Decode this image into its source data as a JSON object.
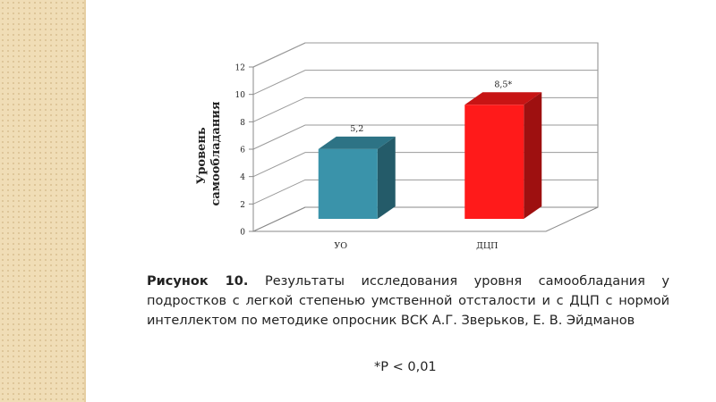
{
  "chart_data": {
    "type": "bar",
    "title": "",
    "xlabel": "",
    "ylabel": "Уровень самообладания",
    "ylabel_lines": [
      "Уровень",
      "самообладания"
    ],
    "categories": [
      "УО",
      "ДЦП"
    ],
    "values": [
      5.2,
      8.5
    ],
    "data_labels": [
      "5,2",
      "8,5*"
    ],
    "y_ticks": [
      "0",
      "2",
      "4",
      "6",
      "8",
      "10",
      "12"
    ],
    "ylim": [
      0,
      12
    ],
    "grid": true,
    "legend": "none",
    "style": "3d",
    "colors": [
      "#3a93aa",
      "#ff1a1a"
    ]
  },
  "caption": {
    "lead": "Рисунок 10.",
    "text": " Результаты исследования уровня самообладания у подростков с легкой степенью умственной отсталости и с ДЦП с нормой интеллектом  по методике опросник ВСК  А.Г. Зверьков, Е. В. Эйдманов"
  },
  "note": "*P < 0,01"
}
